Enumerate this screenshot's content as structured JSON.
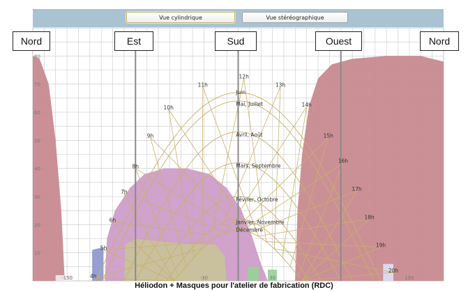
{
  "toolbar": {
    "cylindrical_label": "Vue cylindrique",
    "stereographic_label": "Vue stéréographique",
    "active_view": "Vue cylindrique"
  },
  "directions": {
    "north_left": "Nord",
    "east": "Est",
    "south": "Sud",
    "west": "Ouest",
    "north_right": "Nord"
  },
  "caption": "Héliodon + Masques pour l'atelier de fabrication (RDC)",
  "chart_data": {
    "type": "sun-path",
    "projection": "cylindrical",
    "xlim": [
      -180,
      180
    ],
    "ylim": [
      0,
      90
    ],
    "grid": true,
    "x_ticks": [
      -150,
      -30,
      30,
      150
    ],
    "x_tick_labels": [
      "-150",
      "-30",
      "30",
      "150"
    ],
    "y_ticks": [
      10,
      20,
      30,
      40,
      50,
      60,
      70,
      80
    ],
    "y_tick_labels": [
      "10",
      "20",
      "30",
      "40",
      "50",
      "60",
      "70",
      "80"
    ],
    "hour_labels": [
      {
        "text": "4h",
        "az": -127,
        "alt": 1
      },
      {
        "text": "5h",
        "az": -118,
        "alt": 11
      },
      {
        "text": "6h",
        "az": -110,
        "alt": 21
      },
      {
        "text": "7h",
        "az": -100,
        "alt": 31
      },
      {
        "text": "8h",
        "az": -90,
        "alt": 40
      },
      {
        "text": "9h",
        "az": -77,
        "alt": 51
      },
      {
        "text": "10h",
        "az": -61,
        "alt": 61
      },
      {
        "text": "11h",
        "az": -31,
        "alt": 69
      },
      {
        "text": "12h",
        "az": 5,
        "alt": 72
      },
      {
        "text": "13h",
        "az": 37,
        "alt": 69
      },
      {
        "text": "14h",
        "az": 60,
        "alt": 62
      },
      {
        "text": "15h",
        "az": 79,
        "alt": 51
      },
      {
        "text": "16h",
        "az": 92,
        "alt": 42
      },
      {
        "text": "17h",
        "az": 104,
        "alt": 32
      },
      {
        "text": "18h",
        "az": 115,
        "alt": 22
      },
      {
        "text": "19h",
        "az": 125,
        "alt": 12
      },
      {
        "text": "20h",
        "az": 136,
        "alt": 3
      }
    ],
    "day_curves": [
      {
        "label": "Juin",
        "noon_alt": 67,
        "half_width": 125
      },
      {
        "label": "Mai, Juillet",
        "noon_alt": 64,
        "half_width": 119
      },
      {
        "label": "Avril, Août",
        "noon_alt": 53,
        "half_width": 100
      },
      {
        "label": "Mars, Septembre",
        "noon_alt": 42,
        "half_width": 90
      },
      {
        "label": "Février, Octobre",
        "noon_alt": 30,
        "half_width": 73
      },
      {
        "label": "Janvier, Novembre",
        "noon_alt": 22,
        "half_width": 63
      },
      {
        "label": "Décembre",
        "noon_alt": 18,
        "half_width": 56
      }
    ],
    "masks": [
      {
        "color": "#c7878d",
        "points": [
          [
            -180,
            0
          ],
          [
            -180,
            80
          ],
          [
            -174,
            79
          ],
          [
            -166,
            70
          ],
          [
            -160,
            50
          ],
          [
            -155,
            25
          ],
          [
            -152,
            0
          ]
        ]
      },
      {
        "color": "#c7878d",
        "points": [
          [
            50,
            0
          ],
          [
            52,
            25
          ],
          [
            56,
            45
          ],
          [
            62,
            62
          ],
          [
            70,
            72
          ],
          [
            82,
            77
          ],
          [
            100,
            79
          ],
          [
            130,
            80
          ],
          [
            160,
            80
          ],
          [
            180,
            78
          ],
          [
            180,
            0
          ]
        ]
      },
      {
        "color": "#cc9ac8",
        "points": [
          [
            -117,
            0
          ],
          [
            -115,
            15
          ],
          [
            -108,
            25
          ],
          [
            -95,
            33
          ],
          [
            -82,
            38
          ],
          [
            -65,
            40
          ],
          [
            -45,
            40
          ],
          [
            -25,
            38
          ],
          [
            -10,
            33
          ],
          [
            2,
            26
          ],
          [
            12,
            16
          ],
          [
            20,
            6
          ],
          [
            26,
            0
          ]
        ]
      },
      {
        "color": "#c8c29a",
        "points": [
          [
            -100,
            0
          ],
          [
            -99,
            13
          ],
          [
            -90,
            15
          ],
          [
            -70,
            14
          ],
          [
            -40,
            13
          ],
          [
            -20,
            13
          ],
          [
            -12,
            9
          ],
          [
            -10,
            0
          ]
        ]
      },
      {
        "color": "#8e96d0",
        "points": [
          [
            -128,
            0
          ],
          [
            -128,
            11
          ],
          [
            -118,
            12
          ],
          [
            -118,
            0
          ]
        ]
      },
      {
        "color": "#9acf98",
        "points": [
          [
            8,
            0
          ],
          [
            8,
            5
          ],
          [
            18,
            5
          ],
          [
            18,
            0
          ]
        ]
      },
      {
        "color": "#9acf98",
        "points": [
          [
            26,
            0
          ],
          [
            26,
            4
          ],
          [
            34,
            4
          ],
          [
            34,
            0
          ]
        ]
      },
      {
        "color": "#dde0f2",
        "points": [
          [
            127,
            0
          ],
          [
            127,
            6
          ],
          [
            136,
            6
          ],
          [
            136,
            0
          ]
        ]
      },
      {
        "color": "#f4eaee",
        "points": [
          [
            -160,
            0
          ],
          [
            -160,
            2
          ],
          [
            -145,
            2
          ],
          [
            -145,
            0
          ]
        ]
      }
    ]
  }
}
